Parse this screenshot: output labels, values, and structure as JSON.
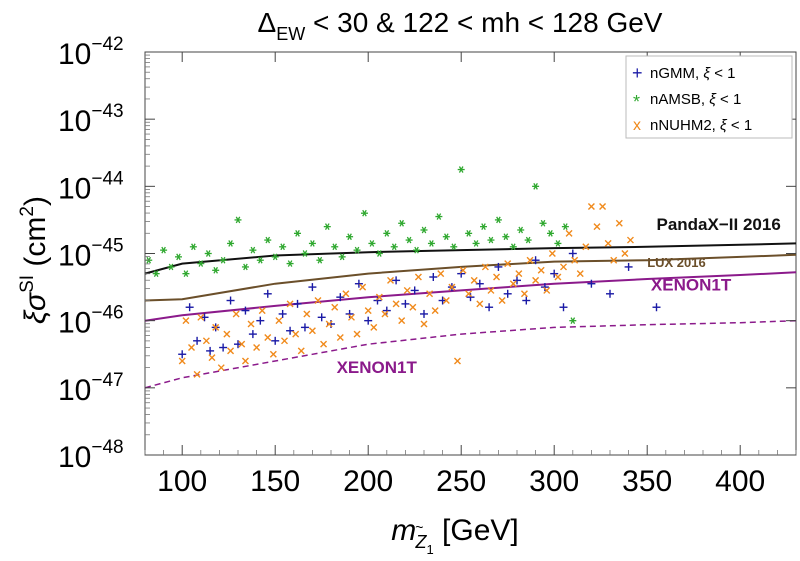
{
  "chart_data": {
    "type": "scatter",
    "title": {
      "delta": "Δ",
      "sub": "EW",
      "rest": " < 30 & 122 < mh < 128 GeV"
    },
    "xlabel": {
      "m": "m",
      "tilde": "~",
      "Z": "Z",
      "sub1": "1",
      "unit": " [GeV]"
    },
    "ylabel": {
      "xi": "ξσ",
      "sup": "SI",
      "unit": " (cm",
      "sq": "2",
      "close": ")"
    },
    "xlim": [
      80,
      430
    ],
    "ylim_log10": [
      -48,
      -42
    ],
    "y_scale": "log",
    "x_ticks": [
      {
        "value": 100,
        "label": "100"
      },
      {
        "value": 150,
        "label": "150"
      },
      {
        "value": 200,
        "label": "200"
      },
      {
        "value": 250,
        "label": "250"
      },
      {
        "value": 300,
        "label": "300"
      },
      {
        "value": 350,
        "label": "350"
      },
      {
        "value": 400,
        "label": "400"
      }
    ],
    "y_ticks": [
      {
        "exp": -42,
        "base": "10",
        "label": "−42"
      },
      {
        "exp": -43,
        "base": "10",
        "label": "−43"
      },
      {
        "exp": -44,
        "base": "10",
        "label": "−44"
      },
      {
        "exp": -45,
        "base": "10",
        "label": "−45"
      },
      {
        "exp": -46,
        "base": "10",
        "label": "−46"
      },
      {
        "exp": -47,
        "base": "10",
        "label": "−47"
      },
      {
        "exp": -48,
        "base": "10",
        "label": "−48"
      }
    ],
    "legend": {
      "position": "top-right",
      "entries": [
        {
          "marker": "+",
          "label": "nGMM, ",
          "xi": "ξ",
          "cond": " < 1",
          "color": "#1a1aa6"
        },
        {
          "marker": "*",
          "label": "nAMSB, ",
          "xi": "ξ",
          "cond": " < 1",
          "color": "#2fa82f"
        },
        {
          "marker": "x",
          "label": "nNUHM2, ",
          "xi": "ξ",
          "cond": " < 1",
          "color": "#f08a1c"
        }
      ]
    },
    "curves": [
      {
        "name": "PandaX-II 2016",
        "label": "PandaX−II 2016",
        "color": "#111111",
        "style": "solid",
        "x": [
          80,
          100,
          150,
          200,
          250,
          300,
          350,
          400,
          430
        ],
        "log10y": [
          -45.3,
          -45.15,
          -45.03,
          -44.98,
          -44.95,
          -44.92,
          -44.9,
          -44.87,
          -44.85
        ]
      },
      {
        "name": "LUX 2016",
        "label": "LUX 2016",
        "color": "#6b4f2a",
        "style": "solid",
        "x": [
          80,
          100,
          150,
          200,
          250,
          300,
          350,
          400,
          430
        ],
        "log10y": [
          -45.7,
          -45.68,
          -45.45,
          -45.3,
          -45.2,
          -45.12,
          -45.1,
          -45.05,
          -45.02
        ]
      },
      {
        "name": "XENON1T",
        "label": "XENON1T",
        "color": "#8b1a8b",
        "style": "solid",
        "x": [
          80,
          100,
          150,
          200,
          250,
          300,
          350,
          400,
          430
        ],
        "log10y": [
          -46.0,
          -45.92,
          -45.78,
          -45.65,
          -45.55,
          -45.45,
          -45.38,
          -45.32,
          -45.28
        ]
      },
      {
        "name": "XENON1T projected",
        "label": "XENON1T",
        "color": "#8b1a8b",
        "style": "dashed",
        "x": [
          80,
          100,
          150,
          200,
          250,
          300,
          350,
          400,
          430
        ],
        "log10y": [
          -47.0,
          -46.85,
          -46.6,
          -46.35,
          -46.2,
          -46.1,
          -46.06,
          -46.03,
          -46.0
        ]
      }
    ],
    "curve_label_positions": [
      {
        "text": "PandaX−II 2016",
        "at_x": 355,
        "at_log10y": -44.65,
        "color": "#111111",
        "size": 17
      },
      {
        "text": "LUX 2016",
        "at_x": 350,
        "at_log10y": -45.2,
        "color": "#6b4f2a",
        "size": 13
      },
      {
        "text": "XENON1T",
        "at_x": 352,
        "at_log10y": -45.55,
        "color": "#8b1a8b",
        "size": 17
      },
      {
        "text": "XENON1T",
        "at_x": 183,
        "at_log10y": -46.78,
        "color": "#8b1a8b",
        "size": 17
      }
    ],
    "series": [
      {
        "name": "nGMM",
        "marker": "+",
        "color": "#1a1aa6",
        "x": [
          100,
          104,
          108,
          112,
          115,
          118,
          122,
          126,
          130,
          134,
          138,
          142,
          146,
          150,
          154,
          158,
          162,
          166,
          170,
          175,
          180,
          185,
          190,
          195,
          200,
          205,
          210,
          215,
          220,
          225,
          230,
          235,
          240,
          245,
          250,
          255,
          260,
          265,
          270,
          275,
          280,
          285,
          290,
          295,
          300,
          305,
          310,
          320,
          330,
          340,
          355
        ],
        "log10y": [
          -46.5,
          -45.8,
          -46.3,
          -45.95,
          -46.45,
          -46.1,
          -46.4,
          -45.7,
          -46.35,
          -45.85,
          -46.2,
          -46.0,
          -45.6,
          -46.3,
          -45.9,
          -46.15,
          -45.75,
          -46.1,
          -45.5,
          -45.95,
          -46.05,
          -45.65,
          -45.9,
          -45.45,
          -46.0,
          -45.7,
          -45.85,
          -45.4,
          -45.75,
          -45.55,
          -45.9,
          -45.35,
          -45.7,
          -45.5,
          -45.3,
          -45.65,
          -45.45,
          -45.8,
          -45.2,
          -45.6,
          -45.4,
          -45.7,
          -45.1,
          -45.5,
          -45.3,
          -45.8,
          -45.0,
          -45.45,
          -45.6,
          -45.2,
          -45.8
        ]
      },
      {
        "name": "nAMSB",
        "marker": "*",
        "color": "#2fa82f",
        "x": [
          82,
          86,
          90,
          94,
          98,
          102,
          106,
          110,
          114,
          118,
          122,
          126,
          130,
          134,
          138,
          142,
          146,
          150,
          154,
          158,
          162,
          166,
          170,
          174,
          178,
          182,
          186,
          190,
          194,
          198,
          202,
          206,
          210,
          214,
          218,
          222,
          226,
          230,
          234,
          238,
          242,
          246,
          250,
          254,
          258,
          262,
          266,
          270,
          274,
          278,
          282,
          286,
          290,
          294,
          298,
          302,
          306,
          310
        ],
        "log10y": [
          -45.1,
          -45.3,
          -44.95,
          -45.2,
          -45.05,
          -45.3,
          -44.9,
          -45.15,
          -45.0,
          -45.25,
          -45.1,
          -44.85,
          -44.5,
          -45.2,
          -44.95,
          -45.1,
          -44.8,
          -45.05,
          -44.9,
          -45.15,
          -44.7,
          -45.0,
          -44.85,
          -45.1,
          -44.6,
          -44.9,
          -45.05,
          -44.75,
          -44.95,
          -44.4,
          -44.85,
          -45.0,
          -44.7,
          -44.9,
          -44.55,
          -44.8,
          -44.95,
          -44.65,
          -44.85,
          -44.45,
          -44.75,
          -44.9,
          -43.75,
          -44.7,
          -44.85,
          -44.6,
          -44.8,
          -44.5,
          -44.75,
          -44.9,
          -44.65,
          -44.8,
          -44.0,
          -44.55,
          -44.7,
          -44.85,
          -44.6,
          -46.0
        ]
      },
      {
        "name": "nNUHM2",
        "marker": "x",
        "color": "#f08a1c",
        "x": [
          100,
          102,
          105,
          108,
          110,
          113,
          116,
          118,
          121,
          124,
          126,
          129,
          132,
          134,
          137,
          140,
          143,
          146,
          149,
          152,
          155,
          158,
          161,
          164,
          167,
          170,
          173,
          176,
          179,
          182,
          185,
          188,
          191,
          194,
          197,
          200,
          203,
          206,
          209,
          212,
          215,
          218,
          221,
          224,
          227,
          230,
          233,
          236,
          239,
          242,
          245,
          248,
          251,
          254,
          257,
          260,
          263,
          266,
          269,
          272,
          275,
          278,
          281,
          284,
          287,
          290,
          293,
          296,
          299,
          302,
          305,
          308,
          311,
          314,
          317,
          320,
          323,
          326,
          329,
          332,
          335,
          338,
          341
        ],
        "log10y": [
          -46.6,
          -46.0,
          -46.4,
          -46.8,
          -45.95,
          -46.3,
          -46.55,
          -46.1,
          -46.7,
          -46.2,
          -46.45,
          -45.9,
          -46.35,
          -46.6,
          -46.05,
          -46.4,
          -45.85,
          -46.25,
          -46.5,
          -46.0,
          -46.3,
          -45.75,
          -46.2,
          -46.45,
          -45.9,
          -46.15,
          -45.7,
          -46.35,
          -46.05,
          -45.8,
          -46.25,
          -45.6,
          -45.95,
          -46.2,
          -45.5,
          -45.85,
          -46.1,
          -45.65,
          -45.9,
          -45.4,
          -45.75,
          -46.0,
          -45.55,
          -45.8,
          -45.35,
          -46.05,
          -45.6,
          -45.85,
          -45.3,
          -45.7,
          -45.5,
          -46.6,
          -45.25,
          -45.6,
          -45.4,
          -45.75,
          -45.2,
          -45.55,
          -45.35,
          -45.7,
          -45.15,
          -45.45,
          -45.3,
          -45.6,
          -45.1,
          -45.4,
          -45.25,
          -45.55,
          -45.0,
          -45.35,
          -45.2,
          -44.7,
          -45.1,
          -45.3,
          -44.9,
          -44.3,
          -44.6,
          -44.3,
          -44.85,
          -45.1,
          -44.55,
          -45.0,
          -44.8
        ]
      }
    ]
  }
}
